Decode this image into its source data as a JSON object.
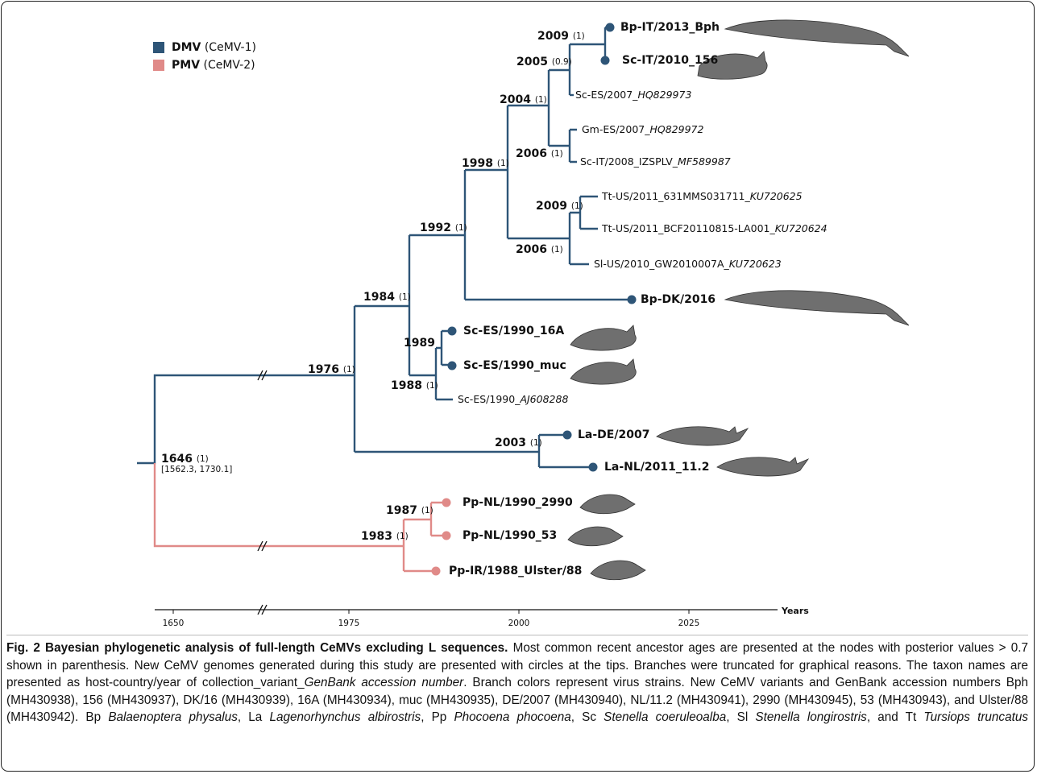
{
  "legend": [
    {
      "label": "DMV",
      "note": "(CeMV-1)",
      "color": "#2e5577"
    },
    {
      "label": "PMV",
      "note": "(CeMV-2)",
      "color": "#e08a88"
    }
  ],
  "root": {
    "year": "1646",
    "support": "(1)",
    "interval": "[1562.3, 1730.1]"
  },
  "nodes": [
    {
      "year": "1976",
      "support": "(1)"
    },
    {
      "year": "1984",
      "support": "(1)"
    },
    {
      "year": "1992",
      "support": "(1)"
    },
    {
      "year": "1998",
      "support": "(1)"
    },
    {
      "year": "2004",
      "support": "(1)"
    },
    {
      "year": "2005",
      "support": "(0.9)"
    },
    {
      "year": "2009",
      "support": "(1)"
    },
    {
      "year": "2006",
      "support": "(1)"
    },
    {
      "year": "2009",
      "support": "(1)"
    },
    {
      "year": "2006",
      "support": "(1)"
    },
    {
      "year": "1989"
    },
    {
      "year": "1988",
      "support": "(1)"
    },
    {
      "year": "2003",
      "support": "(1)"
    },
    {
      "year": "1987",
      "support": "(1)"
    },
    {
      "year": "1983",
      "support": "(1)"
    }
  ],
  "tips": [
    {
      "name": "Bp-IT/2013_Bph"
    },
    {
      "name": "Sc-IT/2010_156"
    },
    {
      "name": "Sc-ES/2007_",
      "accession": "HQ829973"
    },
    {
      "name": "Gm-ES/2007_",
      "accession": "HQ829972"
    },
    {
      "name": "Sc-IT/2008_IZSPLV_",
      "accession": "MF589987"
    },
    {
      "name": "Tt-US/2011_631MMS031711_",
      "accession": "KU720625"
    },
    {
      "name": "Tt-US/2011_BCF20110815-LA001_",
      "accession": "KU720624"
    },
    {
      "name": "Sl-US/2010_GW2010007A_",
      "accession": "KU720623"
    },
    {
      "name": "Bp-DK/2016"
    },
    {
      "name": "Sc-ES/1990_16A"
    },
    {
      "name": "Sc-ES/1990_muc"
    },
    {
      "name": "Sc-ES/1990_",
      "accession": "AJ608288"
    },
    {
      "name": "La-DE/2007"
    },
    {
      "name": "La-NL/2011_11.2"
    },
    {
      "name": "Pp-NL/1990_2990"
    },
    {
      "name": "Pp-NL/1990_53"
    },
    {
      "name": "Pp-IR/1988_Ulster/88"
    }
  ],
  "axis": {
    "ticks": [
      "1650",
      "1975",
      "2000",
      "2025"
    ],
    "title": "Years"
  },
  "caption": {
    "title": "Fig. 2 Bayesian phylogenetic analysis of full-length CeMVs excluding L sequences.",
    "segments": [
      " Most common recent ancestor ages are presented at the nodes with posterior values > 0.7 shown in parenthesis. New CeMV genomes generated during this study are presented with circles at the tips. Branches were truncated for graphical reasons. The taxon names are presented as host-country/year of collection_variant_",
      "GenBank accession number",
      ". Branch colors represent virus strains. New CeMV variants and GenBank accession numbers Bph (MH430938), 156 (MH430937), DK/16 (MH430939), 16A (MH430934), muc (MH430935), DE/2007 (MH430940), NL/11.2 (MH430941), 2990 (MH430945), 53 (MH430943), and Ulster/88 (MH430942). Bp ",
      "Balaenoptera physalus",
      ", La ",
      "Lagenorhynchus albirostris",
      ", Pp ",
      "Phocoena phocoena",
      ", Sc ",
      "Stenella coeruleoalba",
      ", Sl ",
      "Stenella longirostris",
      ", and Tt ",
      "Tursiops truncatus"
    ]
  }
}
